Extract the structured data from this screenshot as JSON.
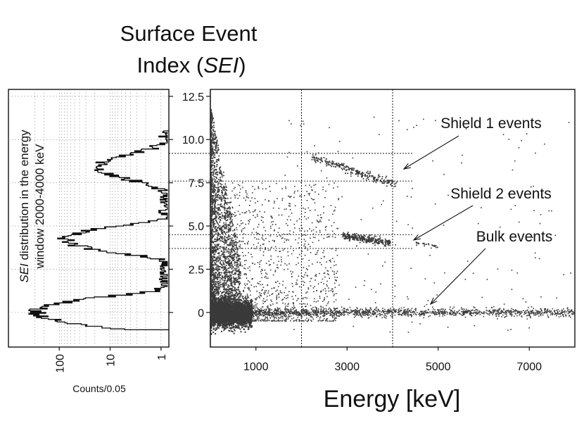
{
  "chart_data": {
    "type": "scatter",
    "title_line1": "Surface Event",
    "title_line2_prefix": "Index (",
    "title_line2_italic": "SEI",
    "title_line2_suffix": ")",
    "xlabel": "Energy [keV]",
    "ylabel": "",
    "xlim": [
      0,
      8000
    ],
    "ylim": [
      -2.0,
      12.9
    ],
    "x_ticks": [
      1000,
      3000,
      5000,
      7000
    ],
    "y_ticks": [
      {
        "value": 12.5,
        "label": "12.5"
      },
      {
        "value": 10.0,
        "label": "10.0"
      },
      {
        "value": 7.5,
        "label": "7.5"
      },
      {
        "value": 5.0,
        "label": "5.0"
      },
      {
        "value": 2.5,
        "label": "2.5"
      },
      {
        "value": 0,
        "label": "0"
      }
    ],
    "vertical_lines_keV": [
      2000,
      4000
    ],
    "horizontal_bands": [
      [
        7.6,
        9.2
      ],
      [
        3.7,
        4.5
      ]
    ],
    "annotations": [
      {
        "text": "Shield 1 events",
        "x": 4300,
        "y": 8.3
      },
      {
        "text": "Shield 2 events",
        "x": 4450,
        "y": 4.2
      },
      {
        "text": "Bulk events",
        "x": 4900,
        "y": 0.4
      }
    ],
    "clusters": [
      {
        "name": "bulk-band",
        "x_range": [
          0,
          8000
        ],
        "y_center": 0.0
      },
      {
        "name": "low-energy-surface",
        "x_range": [
          0,
          700
        ],
        "y_range": [
          -0.5,
          12.5
        ]
      },
      {
        "name": "shield-1",
        "x_range": [
          2200,
          4100
        ],
        "y_center": 8.3
      },
      {
        "name": "shield-2",
        "x_range": [
          2900,
          3900
        ],
        "y_center": 4.2
      }
    ],
    "histogram": {
      "title_italic": "SEI",
      "title_rest": " distribution in the energy",
      "title_line2": "window 2000-4000 keV",
      "xlabel": "Counts/0.05",
      "x_scale": "log",
      "x_ticks": [
        {
          "value": 100,
          "label": "100"
        },
        {
          "value": 10,
          "label": "10"
        },
        {
          "value": 1,
          "label": "1"
        }
      ],
      "peaks": [
        {
          "sei": 0.0,
          "counts": 300
        },
        {
          "sei": 4.2,
          "counts": 80
        },
        {
          "sei": 8.4,
          "counts": 15
        }
      ]
    }
  }
}
